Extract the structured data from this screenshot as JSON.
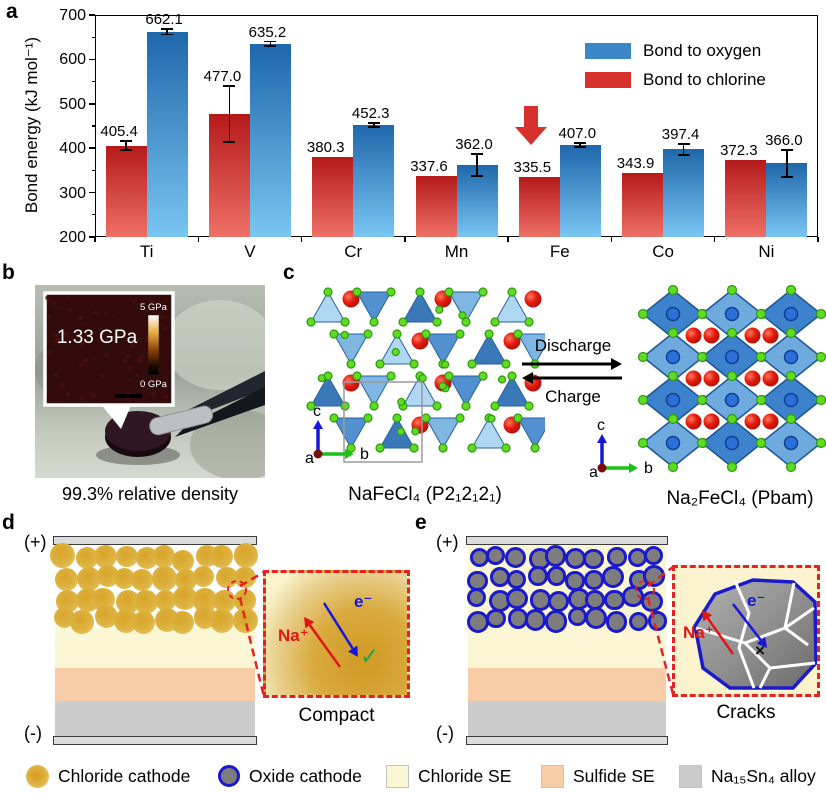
{
  "panels": {
    "a": "a",
    "b": "b",
    "c": "c",
    "d": "d",
    "e": "e"
  },
  "chart_data": {
    "type": "bar",
    "title": "",
    "xlabel": "",
    "ylabel": "Bond energy (kJ mol⁻¹)",
    "ylim": [
      200,
      700
    ],
    "yticks": [
      200,
      300,
      400,
      500,
      600,
      700
    ],
    "minor_ticks": [
      250,
      350,
      450,
      550,
      650
    ],
    "categories": [
      "Ti",
      "V",
      "Cr",
      "Mn",
      "Fe",
      "Co",
      "Ni"
    ],
    "series": [
      {
        "name": "Bond to chlorine",
        "color": "#d7312e",
        "gradient_top": "#b51a1a",
        "gradient_bottom": "#ee7066",
        "values": [
          405.4,
          477.0,
          380.3,
          337.6,
          335.5,
          343.9,
          372.3
        ],
        "errors": [
          10,
          63,
          0,
          0,
          0,
          0,
          0
        ]
      },
      {
        "name": "Bond to oxygen",
        "color": "#3c87c6",
        "gradient_top": "#1e67ab",
        "gradient_bottom": "#79c6f2",
        "values": [
          662.1,
          635.2,
          452.3,
          362.0,
          407.0,
          397.4,
          366.0
        ],
        "errors": [
          6,
          5,
          5,
          25,
          4,
          12,
          30
        ]
      }
    ],
    "legend": [
      "Bond to oxygen",
      "Bond to chlorine"
    ],
    "legend_position": "upper right",
    "grid": false,
    "arrow_annotation": {
      "category": "Fe",
      "series": "Bond to chlorine",
      "color": "#d7312e"
    }
  },
  "panel_b": {
    "inset_value": "1.33 GPa",
    "colorbar_max": "5 GPa",
    "colorbar_min": "0 GPa",
    "caption": "99.3% relative density"
  },
  "panel_c": {
    "left_label": "NaFeCl₄ (P2₁2₁2₁)",
    "right_label": "Na₂FeCl₄ (Pbam)",
    "discharge": "Discharge",
    "charge": "Charge",
    "axis_a": "a",
    "axis_b": "b",
    "axis_c": "c",
    "colors": {
      "na_sphere": "#e41c0e",
      "cl_sphere": "#5fdb21",
      "polyhedron": "#3c87c6"
    }
  },
  "panel_d": {
    "electrode_positive": "(+)",
    "electrode_negative": "(-)",
    "ion": "Na⁺",
    "electron": "e⁻",
    "mark": "✓",
    "caption": "Compact"
  },
  "panel_e": {
    "electrode_positive": "(+)",
    "electrode_negative": "(-)",
    "ion": "Na⁺",
    "electron": "e⁻",
    "mark": "×",
    "caption": "Cracks"
  },
  "bottom_legend": {
    "items": [
      {
        "label": "Chloride cathode",
        "swatch": "chloride-cathode"
      },
      {
        "label": "Oxide cathode",
        "swatch": "oxide-cathode"
      },
      {
        "label": "Chloride SE",
        "swatch": "chloride-se"
      },
      {
        "label": "Sulfide SE",
        "swatch": "sulfide-se"
      },
      {
        "label": "Na₁₅Sn₄ alloy",
        "swatch": "na15sn4-alloy"
      }
    ]
  },
  "colors": {
    "chloride_se": "#fbf7d4",
    "sulfide_se": "#f8cca6",
    "alloy": "#cccccc",
    "oxide_particle": "#7d7d7d",
    "oxide_ring": "#1a1acc",
    "annotation_red": "#e52222"
  }
}
